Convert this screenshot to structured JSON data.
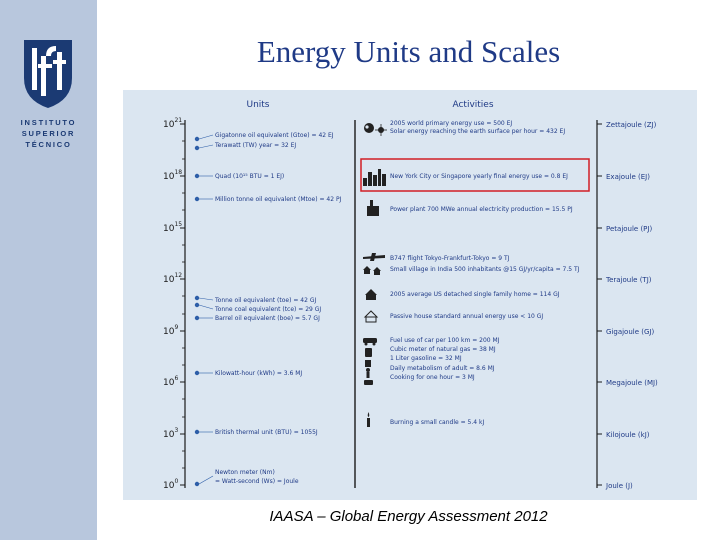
{
  "sidebar": {
    "logo_name": "IST shield logo",
    "logo_lines": [
      "INSTITUTO",
      "SUPERIOR",
      "TÉCNICO"
    ]
  },
  "slide": {
    "title": "Energy Units and Scales",
    "caption": "IAASA – Global Energy Assessment 2012"
  },
  "figure": {
    "units_header": "Units",
    "activities_header": "Activities",
    "colors": {
      "panel": "#dbe6f1",
      "text": "#1f3a86",
      "highlight": "#d21f26",
      "dot": "#2d5ea8"
    },
    "axis_ticks": [
      {
        "mant": "10",
        "exp": "21"
      },
      {
        "mant": "10",
        "exp": "18"
      },
      {
        "mant": "10",
        "exp": "15"
      },
      {
        "mant": "10",
        "exp": "12"
      },
      {
        "mant": "10",
        "exp": "9"
      },
      {
        "mant": "10",
        "exp": "6"
      },
      {
        "mant": "10",
        "exp": "3"
      },
      {
        "mant": "10",
        "exp": "0"
      }
    ],
    "units": [
      "Gigatonne oil equivalent (Gtoe) = 42 EJ",
      "Terawatt (TW) year = 32 EJ",
      "Quad (10¹⁵ BTU = 1 EJ)",
      "Million tonne oil equivalent (Mtoe) = 42 PJ",
      "Tonne oil equivalent (toe) = 42 GJ",
      "Tonne coal equivalent (tce) = 29 GJ",
      "Barrel oil equivalent (boe) = 5.7 GJ",
      "Kilowatt-hour (kWh) = 3.6 MJ",
      "British thermal unit (BTU) = 1055J",
      "Newton meter (Nm)",
      "= Watt-second (Ws) = Joule"
    ],
    "activities": [
      {
        "text": "2005 world primary energy use = 500 EJ",
        "icon": "globe-icon"
      },
      {
        "text": "Solar energy reaching the earth surface per hour = 432 EJ",
        "icon": "sun-icon"
      },
      {
        "text": "New York City or Singapore yearly final energy use = 0.8 EJ",
        "icon": "city-skyline-icon"
      },
      {
        "text": "Power plant 700 MWe annual electricity production = 15.5 PJ",
        "icon": "power-plant-icon"
      },
      {
        "text": "B747 flight Tokyo-Frankfurt-Tokyo = 9 TJ",
        "icon": "airplane-icon"
      },
      {
        "text": "Small village in India 500 inhabitants @15 GJ/yr/capita = 7.5 TJ",
        "icon": "village-icon"
      },
      {
        "text": "2005 average US detached single family home = 114 GJ",
        "icon": "house-icon"
      },
      {
        "text": "Passive house standard annual energy use < 10 GJ",
        "icon": "passive-house-icon"
      },
      {
        "text": "Fuel use of car per 100 km = 200 MJ",
        "icon": "car-icon"
      },
      {
        "text": "Cubic meter of natural gas = 38 MJ",
        "icon": "gas-icon"
      },
      {
        "text": "1 Liter gasoline = 32 MJ",
        "icon": "fuel-can-icon"
      },
      {
        "text": "Daily metabolism of adult = 8.6 MJ",
        "icon": "person-icon"
      },
      {
        "text": "Cooking for one hour = 3 MJ",
        "icon": "cooking-icon"
      },
      {
        "text": "Burning a small candle = 5.4 kJ",
        "icon": "candle-icon"
      }
    ],
    "right_units": [
      "Zettajoule (ZJ)",
      "Exajoule (EJ)",
      "Petajoule (PJ)",
      "Terajoule (TJ)",
      "Gigajoule (GJ)",
      "Megajoule (MJ)",
      "Kilojoule (kJ)",
      "Joule (J)"
    ]
  }
}
